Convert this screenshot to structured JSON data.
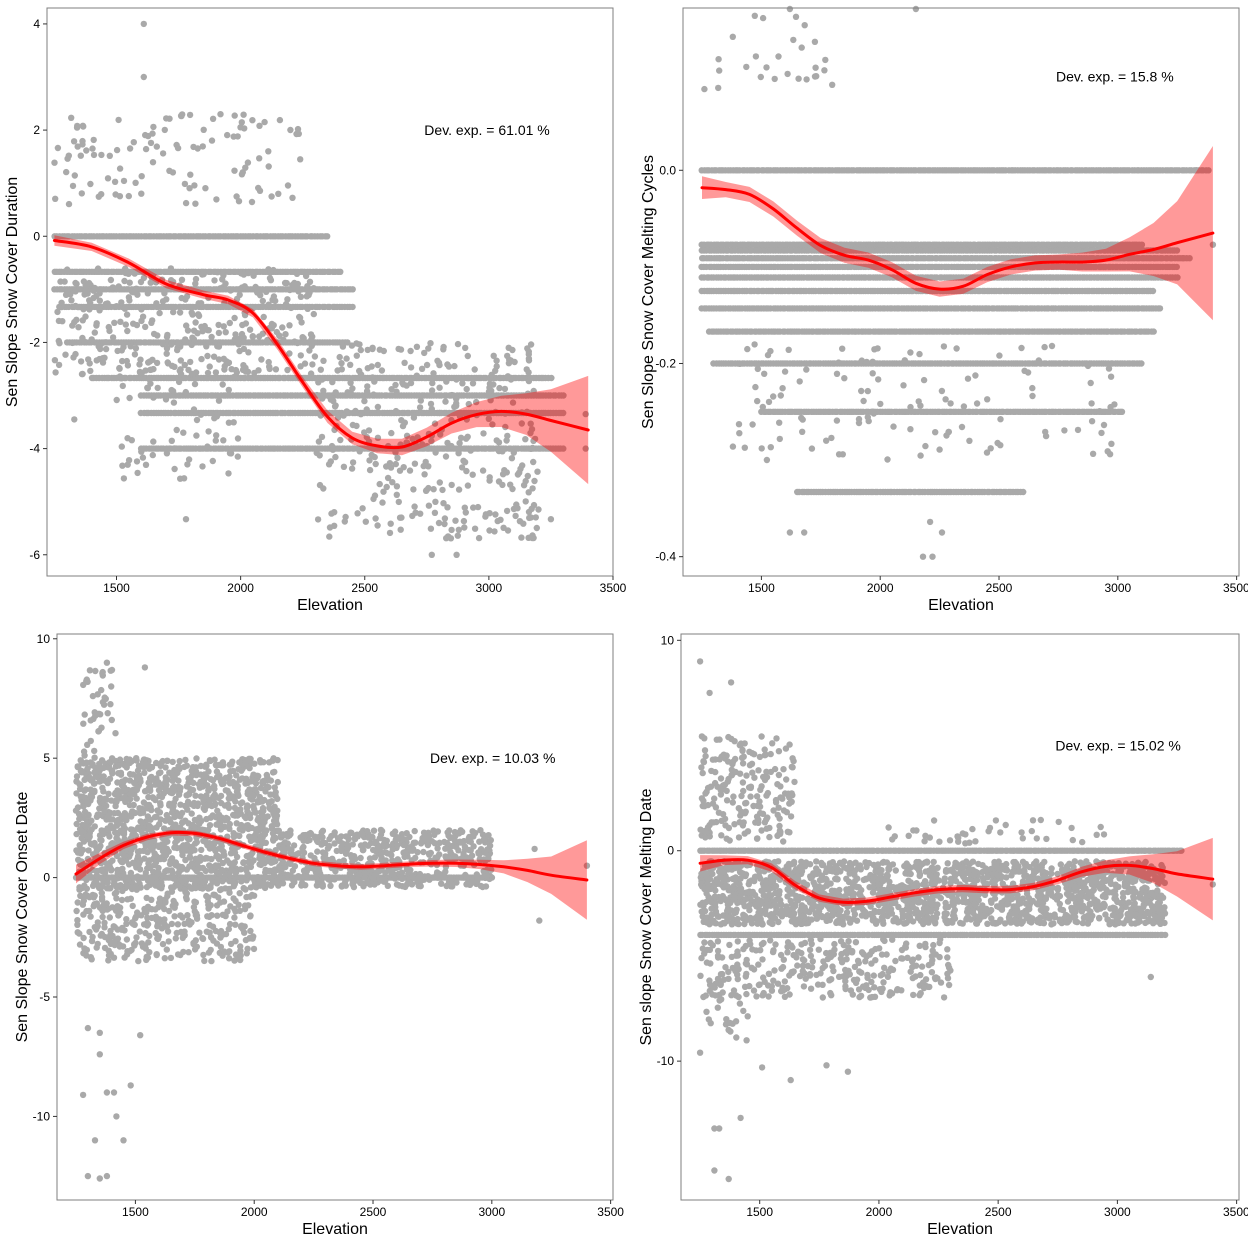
{
  "colors": {
    "points": "#a9a9a9",
    "fit": "#ff0000",
    "band": "#ff0000"
  },
  "chart_data": [
    {
      "type": "scatter",
      "xlabel": "Elevation",
      "ylabel": "Sen Slope Snow Cover Duration",
      "xlim": [
        1220,
        3500
      ],
      "ylim": [
        -6.4,
        4.3
      ],
      "xticks": [
        1500,
        2000,
        2500,
        3000,
        3500
      ],
      "xtick_labels": [
        "1500",
        "2000",
        "2500",
        "3000",
        "3500"
      ],
      "yticks": [
        -6,
        -4,
        -2,
        0,
        2,
        4
      ],
      "ytick_labels": [
        "-6",
        "-4",
        "-2",
        "0",
        "2",
        "4"
      ],
      "annotation": {
        "text": "Dev. exp. = 61.01 %",
        "x": 2740,
        "y": 2.0
      },
      "grid": false,
      "scatter_summary": {
        "levels": [
          {
            "y": 0.0,
            "x": [
              1250,
              2350
            ]
          },
          {
            "y": -0.67,
            "x": [
              1250,
              2400
            ]
          },
          {
            "y": -1.0,
            "x": [
              1250,
              2450
            ]
          },
          {
            "y": -1.33,
            "x": [
              1270,
              2450
            ]
          },
          {
            "y": -2.0,
            "x": [
              1300,
              2430
            ]
          },
          {
            "y": -2.67,
            "x": [
              1400,
              3250
            ]
          },
          {
            "y": -3.0,
            "x": [
              1600,
              3300
            ]
          },
          {
            "y": -3.33,
            "x": [
              1600,
              3300
            ]
          },
          {
            "y": -4.0,
            "x": [
              1600,
              3300
            ]
          }
        ],
        "scatter_regions": [
          {
            "x": [
              1250,
              2300
            ],
            "y": [
              -2.6,
              -0.6
            ],
            "n": 350
          },
          {
            "x": [
              1250,
              2250
            ],
            "y": [
              0.6,
              2.3
            ],
            "n": 110
          },
          {
            "x": [
              2300,
              3200
            ],
            "y": [
              -5.7,
              -2.0
            ],
            "n": 380
          },
          {
            "x": [
              1500,
              2000
            ],
            "y": [
              -4.6,
              -2.3
            ],
            "n": 80
          }
        ],
        "outliers": [
          {
            "x": 1610,
            "y": 4.0
          },
          {
            "x": 1610,
            "y": 3.0
          },
          {
            "x": 1760,
            "y": 2.27
          },
          {
            "x": 2240,
            "y": 1.45
          },
          {
            "x": 1780,
            "y": -5.33
          },
          {
            "x": 2770,
            "y": -6.0
          },
          {
            "x": 2870,
            "y": -6.0
          },
          {
            "x": 3250,
            "y": -5.33
          },
          {
            "x": 1330,
            "y": -3.45
          },
          {
            "x": 3390,
            "y": -4.0
          },
          {
            "x": 3390,
            "y": -3.35
          }
        ]
      },
      "fit": {
        "x": [
          1250,
          1400,
          1550,
          1700,
          1850,
          1950,
          2050,
          2150,
          2250,
          2350,
          2450,
          2550,
          2650,
          2750,
          2850,
          2950,
          3050,
          3150,
          3250,
          3400
        ],
        "y": [
          -0.08,
          -0.2,
          -0.5,
          -0.9,
          -1.1,
          -1.2,
          -1.45,
          -2.05,
          -2.75,
          -3.4,
          -3.8,
          -3.95,
          -3.97,
          -3.78,
          -3.52,
          -3.36,
          -3.3,
          -3.35,
          -3.47,
          -3.65
        ],
        "se": [
          0.05,
          0.04,
          0.04,
          0.04,
          0.04,
          0.04,
          0.04,
          0.05,
          0.05,
          0.06,
          0.06,
          0.07,
          0.08,
          0.09,
          0.1,
          0.12,
          0.15,
          0.2,
          0.3,
          0.52
        ]
      }
    },
    {
      "type": "scatter",
      "xlabel": "Elevation",
      "ylabel": "Sen Slope Snow Cover Melting Cycles",
      "xlim": [
        1170,
        3510
      ],
      "ylim": [
        -0.42,
        0.168
      ],
      "xticks": [
        1500,
        2000,
        2500,
        3000,
        3500
      ],
      "xtick_labels": [
        "1500",
        "2000",
        "2500",
        "3000",
        "3500"
      ],
      "yticks": [
        -0.4,
        -0.2,
        0.0
      ],
      "ytick_labels": [
        "-0.4",
        "-0.2",
        "0.0"
      ],
      "annotation": {
        "text": "Dev. exp. = 15.8 %",
        "x": 2740,
        "y": 0.097
      },
      "grid": false,
      "scatter_summary": {
        "levels": [
          {
            "y": 0.0,
            "x": [
              1250,
              3380
            ]
          },
          {
            "y": -0.077,
            "x": [
              1250,
              3100
            ]
          },
          {
            "y": -0.083,
            "x": [
              1250,
              3250
            ]
          },
          {
            "y": -0.091,
            "x": [
              1250,
              3300
            ]
          },
          {
            "y": -0.1,
            "x": [
              1250,
              3250
            ]
          },
          {
            "y": -0.111,
            "x": [
              1250,
              3250
            ]
          },
          {
            "y": -0.125,
            "x": [
              1250,
              3150
            ]
          },
          {
            "y": -0.143,
            "x": [
              1250,
              3180
            ]
          },
          {
            "y": -0.167,
            "x": [
              1280,
              3150
            ]
          },
          {
            "y": -0.2,
            "x": [
              1300,
              3100
            ]
          },
          {
            "y": -0.25,
            "x": [
              1500,
              3020
            ]
          },
          {
            "y": -0.333,
            "x": [
              1650,
              2600
            ]
          }
        ],
        "scatter_regions": [
          {
            "x": [
              1300,
              1800
            ],
            "y": [
              0.085,
              0.16
            ],
            "n": 25
          },
          {
            "x": [
              1400,
              3000
            ],
            "y": [
              -0.3,
              -0.18
            ],
            "n": 120
          }
        ],
        "outliers": [
          {
            "x": 2150,
            "y": 0.167
          },
          {
            "x": 1620,
            "y": 0.167
          },
          {
            "x": 1260,
            "y": 0.084
          },
          {
            "x": 1320,
            "y": 0.115
          },
          {
            "x": 1380,
            "y": -0.286
          },
          {
            "x": 1620,
            "y": -0.375
          },
          {
            "x": 1680,
            "y": -0.375
          },
          {
            "x": 2220,
            "y": -0.4
          },
          {
            "x": 2180,
            "y": -0.4
          },
          {
            "x": 2210,
            "y": -0.364
          },
          {
            "x": 2260,
            "y": -0.375
          },
          {
            "x": 3400,
            "y": -0.077
          },
          {
            "x": 3330,
            "y": 0.0
          }
        ]
      },
      "fit": {
        "x": [
          1250,
          1350,
          1450,
          1550,
          1650,
          1750,
          1850,
          1950,
          2050,
          2150,
          2250,
          2350,
          2450,
          2550,
          2650,
          2750,
          2850,
          2950,
          3050,
          3150,
          3250,
          3400
        ],
        "y": [
          -0.018,
          -0.02,
          -0.025,
          -0.04,
          -0.06,
          -0.078,
          -0.088,
          -0.093,
          -0.103,
          -0.117,
          -0.123,
          -0.12,
          -0.108,
          -0.1,
          -0.096,
          -0.095,
          -0.095,
          -0.093,
          -0.087,
          -0.082,
          -0.075,
          -0.065
        ],
        "se": [
          0.006,
          0.004,
          0.004,
          0.004,
          0.004,
          0.004,
          0.004,
          0.004,
          0.004,
          0.004,
          0.004,
          0.004,
          0.004,
          0.004,
          0.004,
          0.004,
          0.005,
          0.006,
          0.009,
          0.014,
          0.022,
          0.046
        ]
      }
    },
    {
      "type": "scatter",
      "xlabel": "Elevation",
      "ylabel": "Sen Slope Snow Cover Onset Date",
      "xlim": [
        1170,
        3510
      ],
      "ylim": [
        -13.5,
        10.2
      ],
      "xticks": [
        1500,
        2000,
        2500,
        3000,
        3500
      ],
      "xtick_labels": [
        "1500",
        "2000",
        "2500",
        "3000",
        "3500"
      ],
      "yticks": [
        -10,
        -5,
        0,
        5,
        10
      ],
      "ytick_labels": [
        "-10",
        "-5",
        "0",
        "5",
        "10"
      ],
      "annotation": {
        "text": "Dev. exp. = 10.03 %",
        "x": 2740,
        "y": 5.0
      },
      "grid": false,
      "scatter_summary": {
        "levels": [
          {
            "y": 0.0,
            "x": [
              1250,
              3000
            ]
          }
        ],
        "scatter_regions": [
          {
            "x": [
              1250,
              2100
            ],
            "y": [
              -0.5,
              5.0
            ],
            "n": 1300
          },
          {
            "x": [
              2100,
              3000
            ],
            "y": [
              -0.4,
              2.0
            ],
            "n": 550
          },
          {
            "x": [
              1250,
              2000
            ],
            "y": [
              -3.5,
              -0.3
            ],
            "n": 350
          },
          {
            "x": [
              1280,
              1420
            ],
            "y": [
              5.0,
              9.0
            ],
            "n": 40
          }
        ],
        "outliers": [
          {
            "x": 1300,
            "y": -12.5
          },
          {
            "x": 1350,
            "y": -12.6
          },
          {
            "x": 1380,
            "y": -12.5
          },
          {
            "x": 1330,
            "y": -11.0
          },
          {
            "x": 1450,
            "y": -11.0
          },
          {
            "x": 1420,
            "y": -10.0
          },
          {
            "x": 1380,
            "y": -9.0
          },
          {
            "x": 1410,
            "y": -9.0
          },
          {
            "x": 1480,
            "y": -8.7
          },
          {
            "x": 1280,
            "y": -9.1
          },
          {
            "x": 1350,
            "y": -7.4
          },
          {
            "x": 1300,
            "y": -6.3
          },
          {
            "x": 1350,
            "y": -6.5
          },
          {
            "x": 1520,
            "y": -6.6
          },
          {
            "x": 1540,
            "y": 8.8
          },
          {
            "x": 1380,
            "y": 9.0
          },
          {
            "x": 3200,
            "y": -1.8
          },
          {
            "x": 3180,
            "y": 1.2
          },
          {
            "x": 3400,
            "y": 0.5
          }
        ]
      },
      "fit": {
        "x": [
          1250,
          1350,
          1450,
          1550,
          1650,
          1750,
          1850,
          1950,
          2050,
          2150,
          2250,
          2350,
          2450,
          2550,
          2650,
          2750,
          2850,
          2950,
          3050,
          3150,
          3250,
          3400
        ],
        "y": [
          0.15,
          0.8,
          1.35,
          1.7,
          1.88,
          1.85,
          1.65,
          1.35,
          1.05,
          0.8,
          0.6,
          0.5,
          0.45,
          0.5,
          0.56,
          0.6,
          0.6,
          0.55,
          0.45,
          0.3,
          0.1,
          -0.1
        ],
        "se": [
          0.2,
          0.12,
          0.08,
          0.07,
          0.06,
          0.06,
          0.06,
          0.06,
          0.06,
          0.06,
          0.06,
          0.06,
          0.06,
          0.06,
          0.06,
          0.07,
          0.08,
          0.1,
          0.14,
          0.25,
          0.4,
          0.85
        ]
      }
    },
    {
      "type": "scatter",
      "xlabel": "Elevation",
      "ylabel": "Sen slope Snow Cover Melting Date",
      "xlim": [
        1170,
        3510
      ],
      "ylim": [
        -16.6,
        10.3
      ],
      "xticks": [
        1500,
        2000,
        2500,
        3000,
        3500
      ],
      "xtick_labels": [
        "1500",
        "2000",
        "2500",
        "3000",
        "3500"
      ],
      "yticks": [
        -10,
        0,
        10
      ],
      "ytick_labels": [
        "-10",
        "0",
        "10"
      ],
      "annotation": {
        "text": "Dev. exp. = 15.02 %",
        "x": 2740,
        "y": 5.0
      },
      "grid": false,
      "scatter_summary": {
        "levels": [
          {
            "y": 0.0,
            "x": [
              1250,
              3270
            ]
          },
          {
            "y": -4.0,
            "x": [
              1250,
              3200
            ]
          }
        ],
        "scatter_regions": [
          {
            "x": [
              1250,
              3200
            ],
            "y": [
              -3.5,
              -0.5
            ],
            "n": 1800
          },
          {
            "x": [
              1250,
              1650
            ],
            "y": [
              0.3,
              5.5
            ],
            "n": 200
          },
          {
            "x": [
              1250,
              2300
            ],
            "y": [
              -7.0,
              -4.2
            ],
            "n": 300
          },
          {
            "x": [
              1250,
              1450
            ],
            "y": [
              -9.5,
              -6.0
            ],
            "n": 25
          },
          {
            "x": [
              2000,
              3000
            ],
            "y": [
              0.3,
              1.5
            ],
            "n": 40
          }
        ],
        "outliers": [
          {
            "x": 1250,
            "y": 9.0
          },
          {
            "x": 1290,
            "y": 7.5
          },
          {
            "x": 1380,
            "y": 8.0
          },
          {
            "x": 1310,
            "y": -13.2
          },
          {
            "x": 1330,
            "y": -13.2
          },
          {
            "x": 1310,
            "y": -15.2
          },
          {
            "x": 1370,
            "y": -15.6
          },
          {
            "x": 1420,
            "y": -12.7
          },
          {
            "x": 1250,
            "y": -9.6
          },
          {
            "x": 1630,
            "y": -10.9
          },
          {
            "x": 1870,
            "y": -10.5
          },
          {
            "x": 1510,
            "y": -10.3
          },
          {
            "x": 1780,
            "y": -10.2
          },
          {
            "x": 3140,
            "y": -6.0
          },
          {
            "x": 3400,
            "y": -1.6
          }
        ]
      },
      "fit": {
        "x": [
          1250,
          1350,
          1450,
          1550,
          1650,
          1750,
          1850,
          1950,
          2050,
          2150,
          2250,
          2350,
          2450,
          2550,
          2650,
          2750,
          2850,
          2950,
          3050,
          3150,
          3250,
          3400
        ],
        "y": [
          -0.6,
          -0.45,
          -0.45,
          -0.8,
          -1.65,
          -2.25,
          -2.45,
          -2.4,
          -2.2,
          -2.0,
          -1.85,
          -1.8,
          -1.85,
          -1.85,
          -1.7,
          -1.4,
          -1.0,
          -0.75,
          -0.7,
          -0.85,
          -1.1,
          -1.35
        ],
        "se": [
          0.2,
          0.12,
          0.1,
          0.1,
          0.1,
          0.09,
          0.09,
          0.09,
          0.09,
          0.09,
          0.09,
          0.09,
          0.09,
          0.09,
          0.09,
          0.1,
          0.12,
          0.15,
          0.22,
          0.35,
          0.55,
          1.0
        ]
      }
    }
  ]
}
